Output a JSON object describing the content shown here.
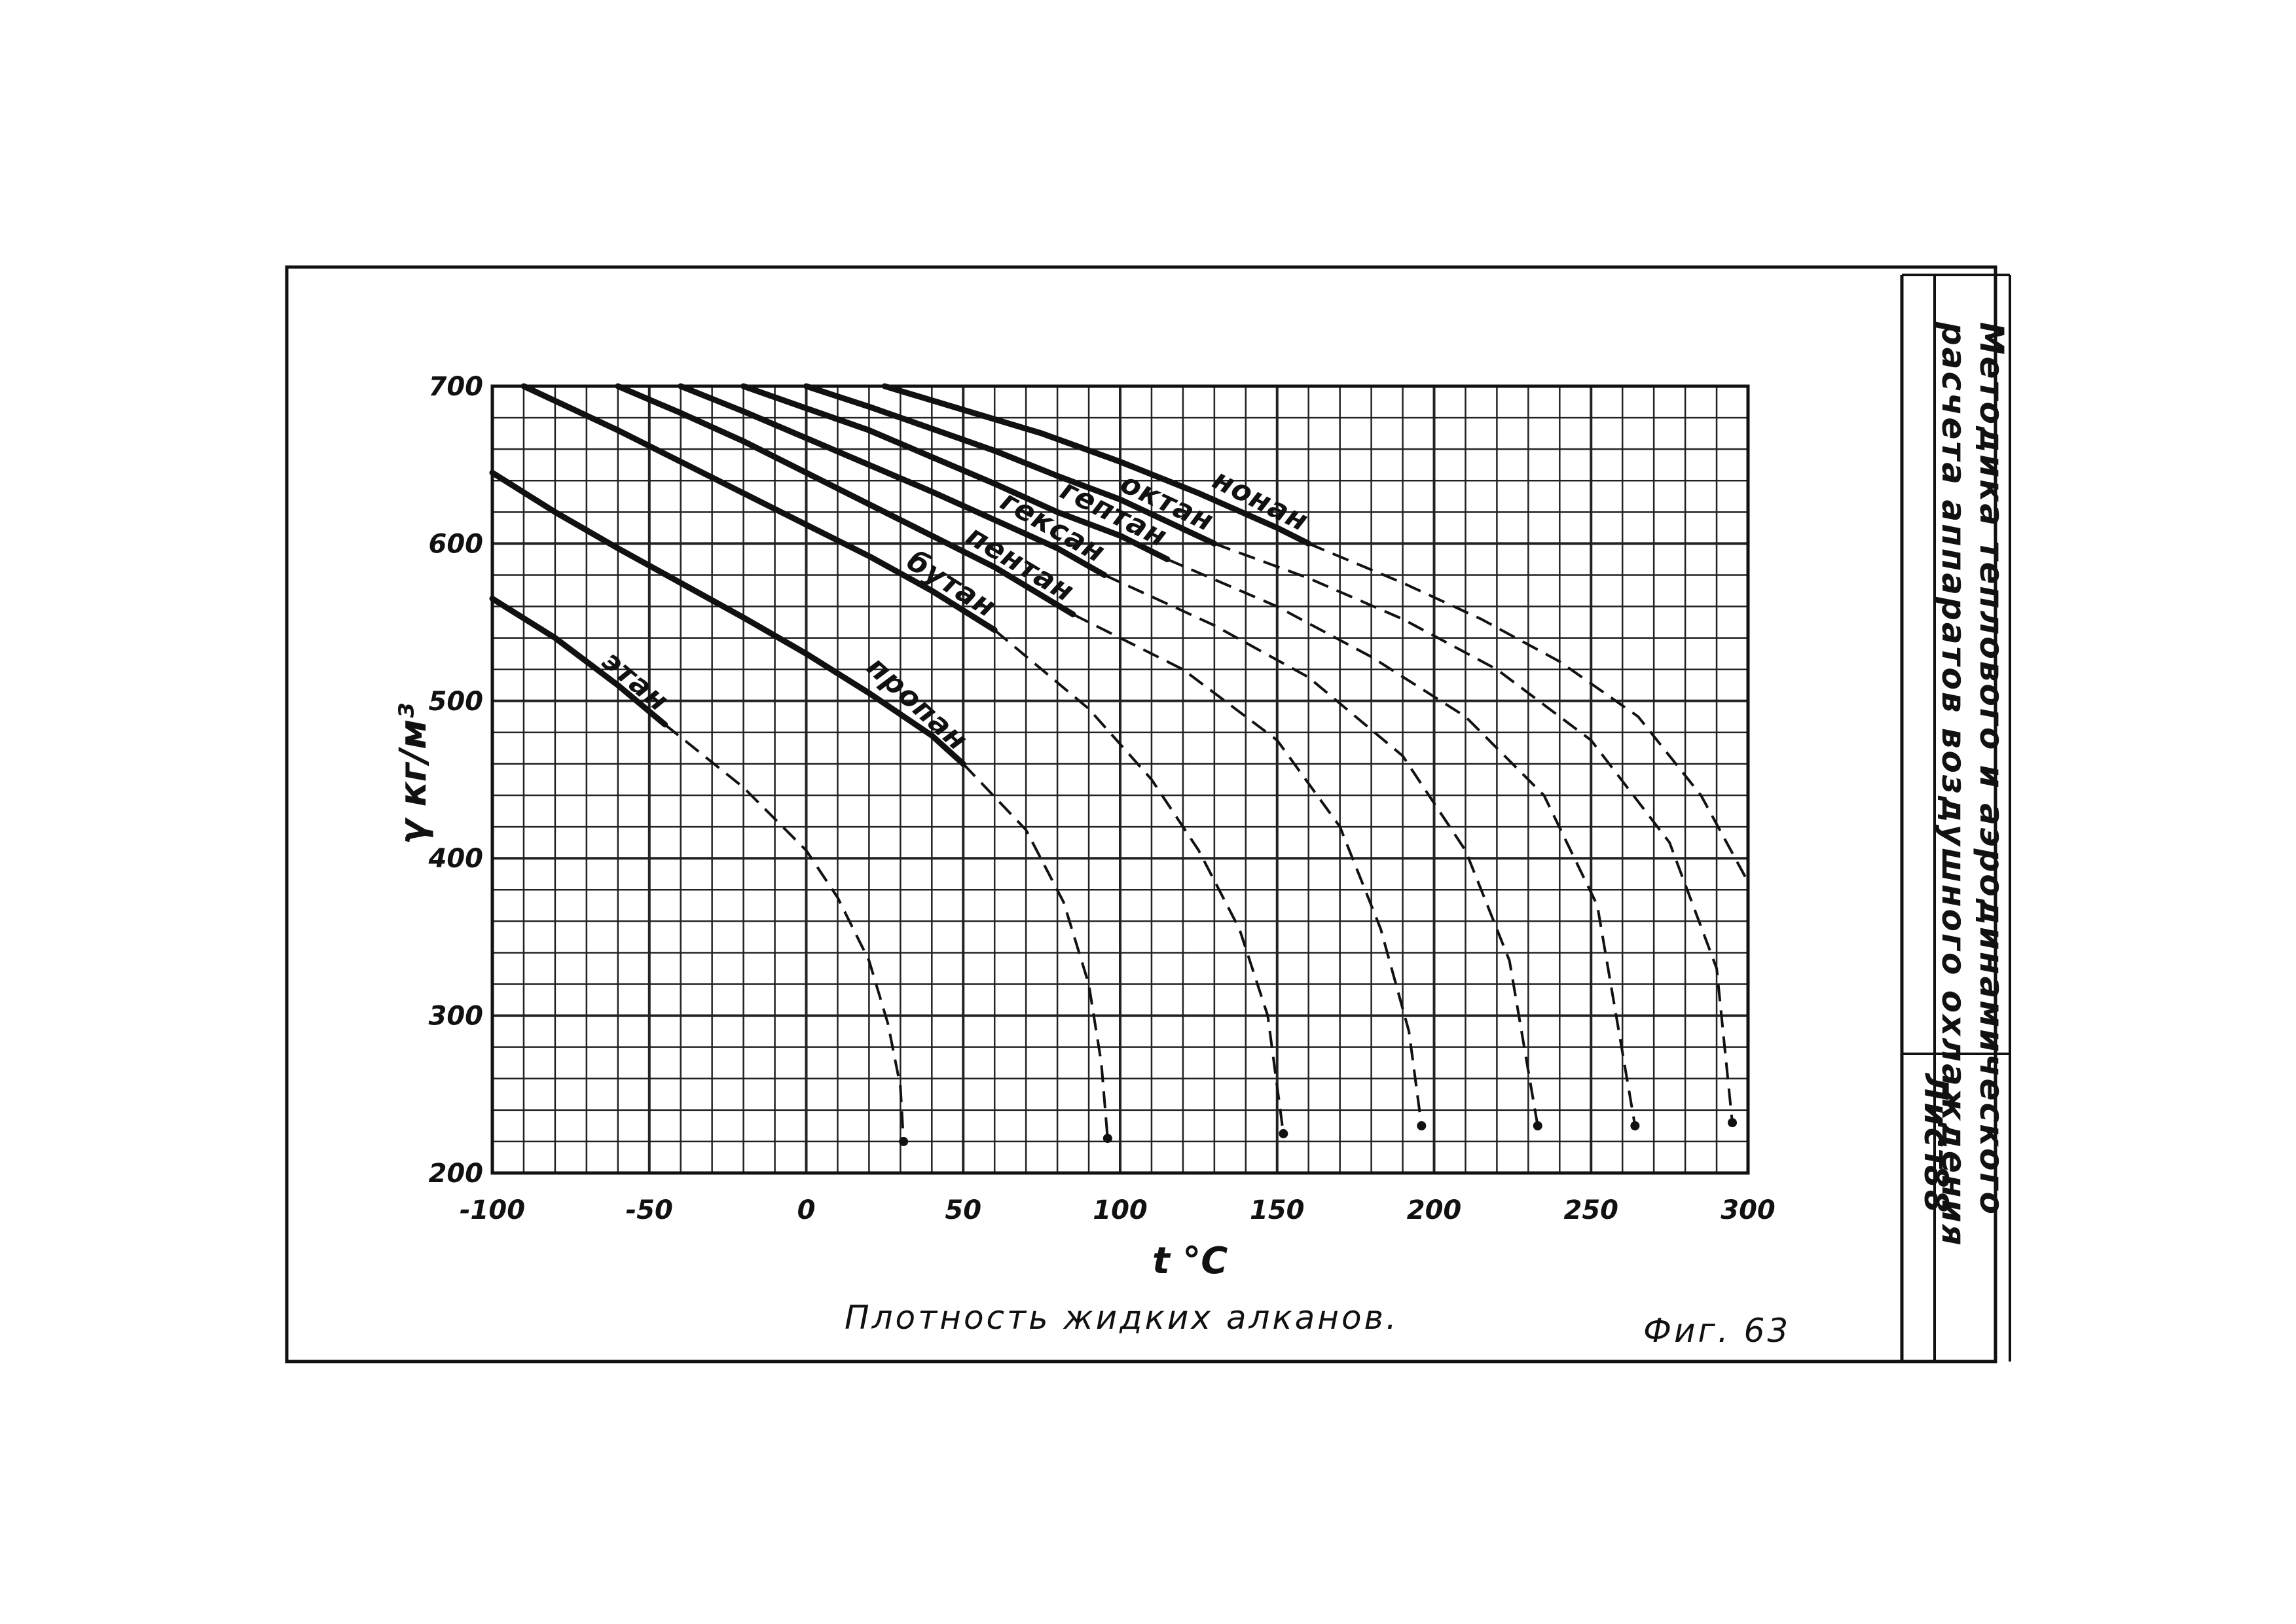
{
  "side_panel": {
    "title_line1": "Методика теплового и аэродинамического",
    "title_line2": "расчета аппаратов воздушного охлаждения",
    "sheet_label": "Лист",
    "sheet_number": "88"
  },
  "caption": {
    "text": "Плотность жидких алканов.",
    "figure": "Фиг. 63"
  },
  "chart_data": {
    "type": "line",
    "title": "Плотность жидких алканов.",
    "xlabel": "t °C",
    "ylabel": "γ кг/м³",
    "xlim": [
      -100,
      300
    ],
    "ylim": [
      200,
      700
    ],
    "xticks": [
      -100,
      -50,
      0,
      50,
      100,
      150,
      200,
      250,
      300
    ],
    "xtick_labels": [
      "-100",
      "-50",
      "0",
      "50",
      "100",
      "150",
      "200",
      "250",
      "300"
    ],
    "yticks": [
      200,
      300,
      400,
      500,
      600,
      700
    ],
    "grid": true,
    "line_style_note": "solid = measured range, dashed = extrapolation to critical point",
    "series": [
      {
        "name": "этан",
        "solid": [
          [
            -100,
            565
          ],
          [
            -80,
            540
          ],
          [
            -60,
            510
          ],
          [
            -45,
            485
          ]
        ],
        "dashed": [
          [
            -45,
            485
          ],
          [
            -20,
            445
          ],
          [
            0,
            405
          ],
          [
            10,
            375
          ],
          [
            20,
            335
          ],
          [
            26,
            295
          ],
          [
            30,
            255
          ],
          [
            31,
            220
          ]
        ]
      },
      {
        "name": "пропан",
        "solid": [
          [
            -100,
            645
          ],
          [
            -80,
            620
          ],
          [
            -60,
            597
          ],
          [
            -40,
            575
          ],
          [
            -20,
            553
          ],
          [
            0,
            530
          ],
          [
            20,
            505
          ],
          [
            40,
            478
          ],
          [
            50,
            460
          ]
        ],
        "dashed": [
          [
            50,
            460
          ],
          [
            70,
            418
          ],
          [
            82,
            372
          ],
          [
            90,
            320
          ],
          [
            94,
            270
          ],
          [
            96,
            222
          ]
        ]
      },
      {
        "name": "бутан",
        "solid": [
          [
            -90,
            700
          ],
          [
            -60,
            672
          ],
          [
            -40,
            652
          ],
          [
            -20,
            632
          ],
          [
            0,
            612
          ],
          [
            20,
            592
          ],
          [
            40,
            570
          ],
          [
            60,
            545
          ]
        ],
        "dashed": [
          [
            60,
            545
          ],
          [
            90,
            495
          ],
          [
            110,
            450
          ],
          [
            125,
            405
          ],
          [
            138,
            355
          ],
          [
            147,
            300
          ],
          [
            152,
            225
          ]
        ]
      },
      {
        "name": "пентан",
        "solid": [
          [
            -60,
            700
          ],
          [
            -40,
            683
          ],
          [
            -20,
            665
          ],
          [
            0,
            645
          ],
          [
            20,
            625
          ],
          [
            40,
            605
          ],
          [
            60,
            585
          ],
          [
            85,
            555
          ]
        ],
        "dashed": [
          [
            85,
            555
          ],
          [
            120,
            520
          ],
          [
            150,
            475
          ],
          [
            170,
            420
          ],
          [
            183,
            355
          ],
          [
            192,
            290
          ],
          [
            196,
            230
          ]
        ]
      },
      {
        "name": "гексан",
        "solid": [
          [
            -40,
            700
          ],
          [
            -20,
            684
          ],
          [
            0,
            667
          ],
          [
            20,
            650
          ],
          [
            40,
            633
          ],
          [
            60,
            615
          ],
          [
            80,
            597
          ],
          [
            95,
            580
          ]
        ],
        "dashed": [
          [
            95,
            580
          ],
          [
            130,
            548
          ],
          [
            160,
            515
          ],
          [
            190,
            465
          ],
          [
            210,
            405
          ],
          [
            224,
            335
          ],
          [
            233,
            230
          ]
        ]
      },
      {
        "name": "гептан",
        "solid": [
          [
            -20,
            700
          ],
          [
            0,
            686
          ],
          [
            20,
            672
          ],
          [
            40,
            655
          ],
          [
            60,
            638
          ],
          [
            80,
            620
          ],
          [
            100,
            605
          ],
          [
            115,
            590
          ]
        ],
        "dashed": [
          [
            115,
            590
          ],
          [
            150,
            560
          ],
          [
            180,
            528
          ],
          [
            210,
            490
          ],
          [
            235,
            440
          ],
          [
            252,
            370
          ],
          [
            264,
            230
          ]
        ]
      },
      {
        "name": "октан",
        "solid": [
          [
            0,
            700
          ],
          [
            20,
            687
          ],
          [
            40,
            673
          ],
          [
            60,
            659
          ],
          [
            80,
            643
          ],
          [
            100,
            628
          ],
          [
            130,
            600
          ]
        ],
        "dashed": [
          [
            130,
            600
          ],
          [
            160,
            578
          ],
          [
            190,
            552
          ],
          [
            220,
            520
          ],
          [
            250,
            475
          ],
          [
            275,
            410
          ],
          [
            290,
            330
          ],
          [
            295,
            232
          ]
        ]
      },
      {
        "name": "нонан",
        "solid": [
          [
            25,
            700
          ],
          [
            50,
            685
          ],
          [
            75,
            670
          ],
          [
            100,
            652
          ],
          [
            125,
            632
          ],
          [
            150,
            610
          ],
          [
            160,
            600
          ]
        ],
        "dashed": [
          [
            160,
            600
          ],
          [
            190,
            575
          ],
          [
            215,
            552
          ],
          [
            240,
            525
          ],
          [
            265,
            490
          ],
          [
            285,
            440
          ],
          [
            300,
            385
          ]
        ]
      }
    ]
  }
}
